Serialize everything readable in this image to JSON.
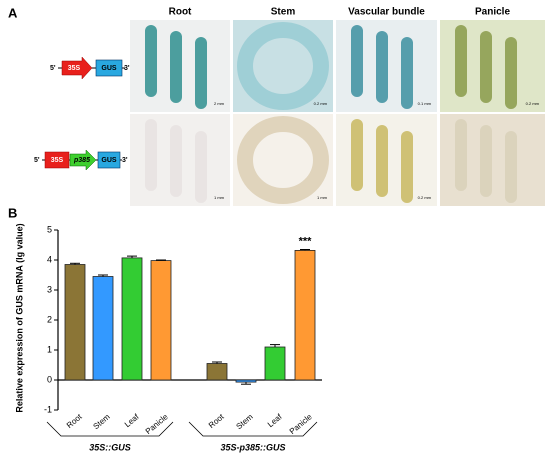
{
  "panel_a": {
    "label": "A",
    "columns": [
      "Root",
      "Stem",
      "Vascular bundle",
      "Panicle"
    ],
    "constructs": [
      {
        "five": "5'",
        "promoter": "35S",
        "gene": "GUS",
        "three": "3'"
      },
      {
        "five": "5'",
        "promoter": "35S",
        "insert": "p385",
        "gene": "GUS",
        "three": "3'"
      }
    ],
    "scale_bars": [
      [
        "2 mm",
        "0.2 mm",
        "0.1 mm",
        "0.2 mm"
      ],
      [
        "1 mm",
        "1 mm",
        "0.2 mm"
      ]
    ]
  },
  "chart_data": {
    "type": "bar",
    "panel_label": "B",
    "y_label": "Relative expression of GUS mRNA (lg value)",
    "categories": [
      "Root",
      "Stem",
      "Leaf",
      "Panicle",
      "Root",
      "Stem",
      "Leaf",
      "Panicle"
    ],
    "groups": [
      "35S::GUS",
      "35S-p385::GUS"
    ],
    "values": [
      3.85,
      3.45,
      4.07,
      3.98,
      0.55,
      -0.07,
      1.1,
      4.32
    ],
    "errors": [
      0.04,
      0.05,
      0.06,
      0.02,
      0.05,
      0.07,
      0.08,
      0.03
    ],
    "colors": [
      "#8b7536",
      "#3399ff",
      "#33cc33",
      "#ff9933",
      "#8b7536",
      "#3399ff",
      "#33cc33",
      "#ff9933"
    ],
    "significance": [
      null,
      null,
      null,
      null,
      null,
      null,
      null,
      "***"
    ],
    "ylim": [
      -1,
      5
    ],
    "yticks": [
      -1,
      0,
      1,
      2,
      3,
      4,
      5
    ]
  }
}
